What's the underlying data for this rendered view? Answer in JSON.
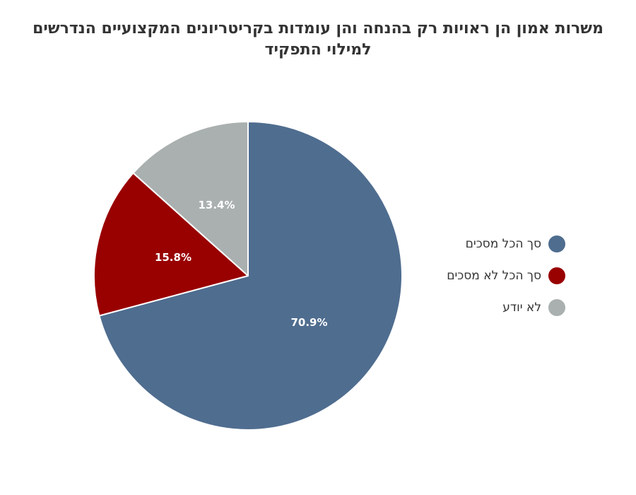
{
  "chart_data": {
    "type": "pie",
    "title": "משרות אמון הן ראויות רק בהנחה והן עומדות בקריטריונים המקצועיים הנדרשים למילוי התפקיד",
    "categories": [
      "סך הכל מסכים",
      "סך הכל לא מסכים",
      "לא יודע"
    ],
    "values": [
      70.9,
      15.8,
      13.4
    ],
    "data_labels": [
      "70.9%",
      "15.8%",
      "13.4%"
    ],
    "colors": [
      "#4f6d8f",
      "#990000",
      "#aab0b0"
    ],
    "legend_position": "right"
  }
}
